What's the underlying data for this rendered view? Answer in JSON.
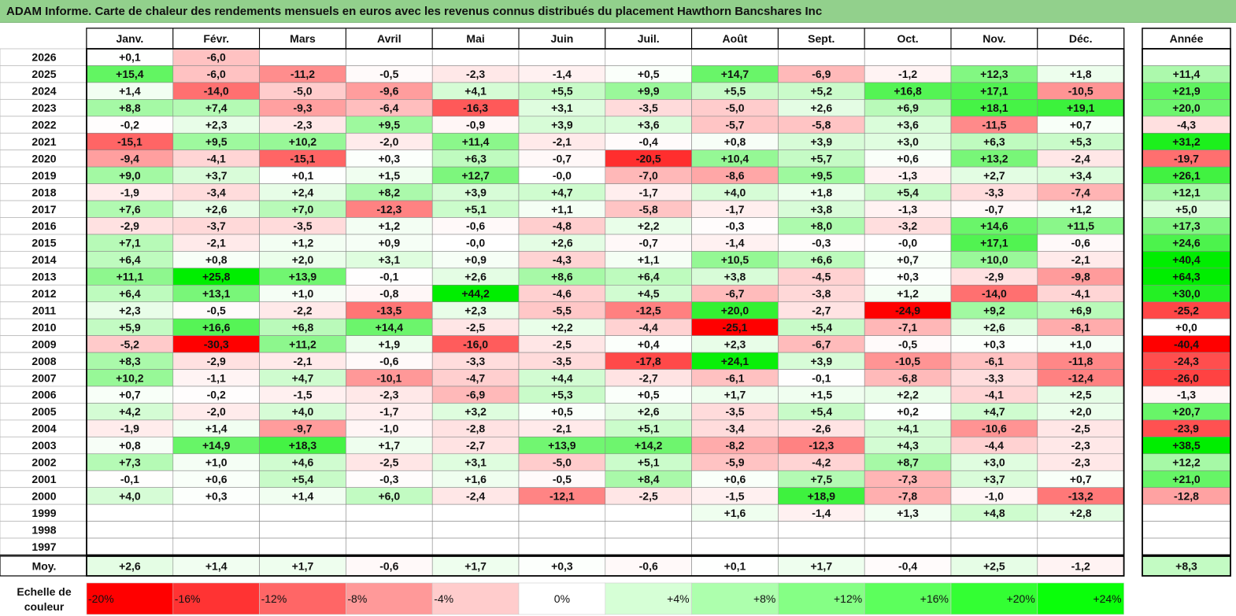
{
  "title": "ADAM Informe. Carte de chaleur des rendements mensuels en euros avec les revenus connus distribués du placement Hawthorn Bancshares Inc",
  "chart_data": {
    "type": "heatmap",
    "title": "ADAM Informe. Carte de chaleur des rendements mensuels en euros avec les revenus connus distribués du placement Hawthorn Bancshares Inc",
    "months": [
      "Janv.",
      "Févr.",
      "Mars",
      "Avril",
      "Mai",
      "Juin",
      "Juil.",
      "Août",
      "Sept.",
      "Oct.",
      "Nov.",
      "Déc."
    ],
    "year_col_label": "Année",
    "rows": [
      {
        "year": "2026",
        "values": [
          "+0,1",
          "-6,0",
          "",
          "",
          "",
          "",
          "",
          "",
          "",
          "",
          "",
          ""
        ],
        "total": ""
      },
      {
        "year": "2025",
        "values": [
          "+15,4",
          "-6,0",
          "-11,2",
          "-0,5",
          "-2,3",
          "-1,4",
          "+0,5",
          "+14,7",
          "-6,9",
          "-1,2",
          "+12,3",
          "+1,8"
        ],
        "total": "+11,4"
      },
      {
        "year": "2024",
        "values": [
          "+1,4",
          "-14,0",
          "-5,0",
          "-9,6",
          "+4,1",
          "+5,5",
          "+9,9",
          "+5,5",
          "+5,2",
          "+16,8",
          "+17,1",
          "-10,5"
        ],
        "total": "+21,9"
      },
      {
        "year": "2023",
        "values": [
          "+8,8",
          "+7,4",
          "-9,3",
          "-6,4",
          "-16,3",
          "+3,1",
          "-3,5",
          "-5,0",
          "+2,6",
          "+6,9",
          "+18,1",
          "+19,1"
        ],
        "total": "+20,0"
      },
      {
        "year": "2022",
        "values": [
          "-0,2",
          "+2,3",
          "-2,3",
          "+9,5",
          "-0,9",
          "+3,9",
          "+3,6",
          "-5,7",
          "-5,8",
          "+3,6",
          "-11,5",
          "+0,7"
        ],
        "total": "-4,3"
      },
      {
        "year": "2021",
        "values": [
          "-15,1",
          "+9,5",
          "+10,2",
          "-2,0",
          "+11,4",
          "-2,1",
          "-0,4",
          "+0,8",
          "+3,9",
          "+3,0",
          "+6,3",
          "+5,3"
        ],
        "total": "+31,2"
      },
      {
        "year": "2020",
        "values": [
          "-9,4",
          "-4,1",
          "-15,1",
          "+0,3",
          "+6,3",
          "-0,7",
          "-20,5",
          "+10,4",
          "+5,7",
          "+0,6",
          "+13,2",
          "-2,4"
        ],
        "total": "-19,7"
      },
      {
        "year": "2019",
        "values": [
          "+9,0",
          "+3,7",
          "+0,1",
          "+1,5",
          "+12,7",
          "-0,0",
          "-7,0",
          "-8,6",
          "+9,5",
          "-1,3",
          "+2,7",
          "+3,4"
        ],
        "total": "+26,1"
      },
      {
        "year": "2018",
        "values": [
          "-1,9",
          "-3,4",
          "+2,4",
          "+8,2",
          "+3,9",
          "+4,7",
          "-1,7",
          "+4,0",
          "+1,8",
          "+5,4",
          "-3,3",
          "-7,4"
        ],
        "total": "+12,1"
      },
      {
        "year": "2017",
        "values": [
          "+7,6",
          "+2,6",
          "+7,0",
          "-12,3",
          "+5,1",
          "+1,1",
          "-5,8",
          "-1,7",
          "+3,8",
          "-1,3",
          "-0,7",
          "+1,2"
        ],
        "total": "+5,0"
      },
      {
        "year": "2016",
        "values": [
          "-2,9",
          "-3,7",
          "-3,5",
          "+1,2",
          "-0,6",
          "-4,8",
          "+2,2",
          "-0,3",
          "+8,0",
          "-3,2",
          "+14,6",
          "+11,5"
        ],
        "total": "+17,3"
      },
      {
        "year": "2015",
        "values": [
          "+7,1",
          "-2,1",
          "+1,2",
          "+0,9",
          "-0,0",
          "+2,6",
          "-0,7",
          "-1,4",
          "-0,3",
          "-0,0",
          "+17,1",
          "-0,6"
        ],
        "total": "+24,6"
      },
      {
        "year": "2014",
        "values": [
          "+6,4",
          "+0,8",
          "+2,0",
          "+3,1",
          "+0,9",
          "-4,3",
          "+1,1",
          "+10,5",
          "+6,6",
          "+0,7",
          "+10,0",
          "-2,1"
        ],
        "total": "+40,4"
      },
      {
        "year": "2013",
        "values": [
          "+11,1",
          "+25,8",
          "+13,9",
          "-0,1",
          "+2,6",
          "+8,6",
          "+6,4",
          "+3,8",
          "-4,5",
          "+0,3",
          "-2,9",
          "-9,8"
        ],
        "total": "+64,3"
      },
      {
        "year": "2012",
        "values": [
          "+6,4",
          "+13,1",
          "+1,0",
          "-0,8",
          "+44,2",
          "-4,6",
          "+4,5",
          "-6,7",
          "-3,8",
          "+1,2",
          "-14,0",
          "-4,1"
        ],
        "total": "+30,0"
      },
      {
        "year": "2011",
        "values": [
          "+2,3",
          "-0,5",
          "-2,2",
          "-13,5",
          "+2,3",
          "-5,5",
          "-12,5",
          "+20,0",
          "-2,7",
          "-24,9",
          "+9,2",
          "+6,9"
        ],
        "total": "-25,2"
      },
      {
        "year": "2010",
        "values": [
          "+5,9",
          "+16,6",
          "+6,8",
          "+14,4",
          "-2,5",
          "+2,2",
          "-4,4",
          "-25,1",
          "+5,4",
          "-7,1",
          "+2,6",
          "-8,1"
        ],
        "total": "+0,0"
      },
      {
        "year": "2009",
        "values": [
          "-5,2",
          "-30,3",
          "+11,2",
          "+1,9",
          "-16,0",
          "-2,5",
          "+0,4",
          "+2,3",
          "-6,7",
          "-0,5",
          "+0,3",
          "+1,0"
        ],
        "total": "-40,4"
      },
      {
        "year": "2008",
        "values": [
          "+8,3",
          "-2,9",
          "-2,1",
          "-0,6",
          "-3,3",
          "-3,5",
          "-17,8",
          "+24,1",
          "+3,9",
          "-10,5",
          "-6,1",
          "-11,8"
        ],
        "total": "-24,3"
      },
      {
        "year": "2007",
        "values": [
          "+10,2",
          "-1,1",
          "+4,7",
          "-10,1",
          "-4,7",
          "+4,4",
          "-2,7",
          "-6,1",
          "-0,1",
          "-6,8",
          "-3,3",
          "-12,4"
        ],
        "total": "-26,0"
      },
      {
        "year": "2006",
        "values": [
          "+0,7",
          "-0,2",
          "-1,5",
          "-2,3",
          "-6,9",
          "+5,3",
          "+0,5",
          "+1,7",
          "+1,5",
          "+2,2",
          "-4,1",
          "+2,5"
        ],
        "total": "-1,3"
      },
      {
        "year": "2005",
        "values": [
          "+4,2",
          "-2,0",
          "+4,0",
          "-1,7",
          "+3,2",
          "+0,5",
          "+2,6",
          "-3,5",
          "+5,4",
          "+0,2",
          "+4,7",
          "+2,0"
        ],
        "total": "+20,7"
      },
      {
        "year": "2004",
        "values": [
          "-1,9",
          "+1,4",
          "-9,7",
          "-1,0",
          "-2,8",
          "-2,1",
          "+5,1",
          "-3,4",
          "-2,6",
          "+4,1",
          "-10,6",
          "-2,5"
        ],
        "total": "-23,9"
      },
      {
        "year": "2003",
        "values": [
          "+0,8",
          "+14,9",
          "+18,3",
          "+1,7",
          "-2,7",
          "+13,9",
          "+14,2",
          "-8,2",
          "-12,3",
          "+4,3",
          "-4,4",
          "-2,3"
        ],
        "total": "+38,5"
      },
      {
        "year": "2002",
        "values": [
          "+7,3",
          "+1,0",
          "+4,6",
          "-2,5",
          "+3,1",
          "-5,0",
          "+5,1",
          "-5,9",
          "-4,2",
          "+8,7",
          "+3,0",
          "-2,3"
        ],
        "total": "+12,2"
      },
      {
        "year": "2001",
        "values": [
          "-0,1",
          "+0,6",
          "+5,4",
          "-0,3",
          "+1,6",
          "-0,5",
          "+8,4",
          "+0,6",
          "+7,5",
          "-7,3",
          "+3,7",
          "+0,7"
        ],
        "total": "+21,0"
      },
      {
        "year": "2000",
        "values": [
          "+4,0",
          "+0,3",
          "+1,4",
          "+6,0",
          "-2,4",
          "-12,1",
          "-2,5",
          "-1,5",
          "+18,9",
          "-7,8",
          "-1,0",
          "-13,2"
        ],
        "total": "-12,8"
      },
      {
        "year": "1999",
        "values": [
          "",
          "",
          "",
          "",
          "",
          "",
          "",
          "+1,6",
          "-1,4",
          "+1,3",
          "+4,8",
          "+2,8"
        ],
        "total": ""
      },
      {
        "year": "1998",
        "values": [
          "",
          "",
          "",
          "",
          "",
          "",
          "",
          "",
          "",
          "",
          "",
          ""
        ],
        "total": ""
      },
      {
        "year": "1997",
        "values": [
          "",
          "",
          "",
          "",
          "",
          "",
          "",
          "",
          "",
          "",
          "",
          ""
        ],
        "total": ""
      }
    ],
    "average": {
      "label": "Moy.",
      "values": [
        "+2,6",
        "+1,4",
        "+1,7",
        "-0,6",
        "+1,7",
        "+0,3",
        "-0,6",
        "+0,1",
        "+1,7",
        "-0,4",
        "+2,5",
        "-1,2"
      ],
      "total": "+8,3"
    },
    "scale": {
      "label_line1": "Echelle de",
      "label_line2": "couleur",
      "items": [
        {
          "label": "-20%",
          "value": -20,
          "color": "#ff0000"
        },
        {
          "label": "-16%",
          "value": -16,
          "color": "#ff3333"
        },
        {
          "label": "-12%",
          "value": -12,
          "color": "#ff6666"
        },
        {
          "label": "-8%",
          "value": -8,
          "color": "#ff9999"
        },
        {
          "label": "-4%",
          "value": -4,
          "color": "#ffcccc"
        },
        {
          "label": "0%",
          "value": 0,
          "color": "#ffffff"
        },
        {
          "label": "+4%",
          "value": 4,
          "color": "#d6ffd6"
        },
        {
          "label": "+8%",
          "value": 8,
          "color": "#adffad"
        },
        {
          "label": "+12%",
          "value": 12,
          "color": "#85ff85"
        },
        {
          "label": "+16%",
          "value": 16,
          "color": "#5cff5c"
        },
        {
          "label": "+20%",
          "value": 20,
          "color": "#33ff33"
        },
        {
          "label": "+24%",
          "value": 24,
          "color": "#0aff0a"
        }
      ]
    },
    "colors": {
      "title_band": "#92d08c",
      "negative_max": "#ff0000",
      "positive_max": "#00ee00",
      "neutral": "#ffffff"
    }
  }
}
